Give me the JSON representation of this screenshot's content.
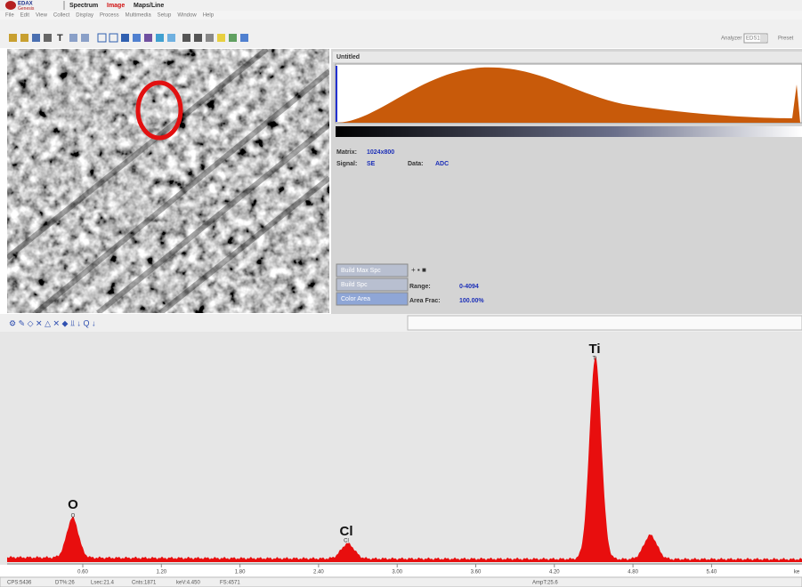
{
  "header": {
    "logo": [
      "EDAX",
      "Genesis"
    ],
    "tabs": [
      "Spectrum",
      "Image",
      "Maps/Line"
    ],
    "menu": [
      "File",
      "Edit",
      "View",
      "Collect",
      "Display",
      "Process",
      "Multimedia",
      "Setup",
      "Window",
      "Help"
    ],
    "analyzer_label": "Analyzer",
    "analyzer_value": "EDS1",
    "preset_label": "Preset"
  },
  "image_panel": {
    "title": "Untitled",
    "matrix_label": "Matrix:",
    "matrix": "1024x800",
    "signal_label": "Signal:",
    "signal": "SE",
    "data_label": "Data:",
    "data": "ADC",
    "buttons": [
      "Build Max Spc",
      "Build Spc",
      "Color Area"
    ],
    "range_label": "Range:",
    "range": "0-4094",
    "area_frac_label": "Area Frac:",
    "area_frac": "100.00%"
  },
  "spectrum": {
    "peaks": [
      {
        "label": "O",
        "sub_label": "O"
      },
      {
        "label": "Cl",
        "sub_label": "Cl"
      },
      {
        "label": "Ti",
        "sub_label": "Ti"
      }
    ],
    "axis_ticks": [
      "0.60",
      "1.20",
      "1.80",
      "2.40",
      "3.00",
      "3.60",
      "4.20",
      "4.80",
      "5.40",
      "ke"
    ]
  },
  "status_bar": [
    "CPS:5436",
    "DT%:26",
    "Lsec:21.4",
    "Cnts:1871",
    "keV:4.450",
    "FS:4571",
    "AmpT:25.6"
  ]
}
